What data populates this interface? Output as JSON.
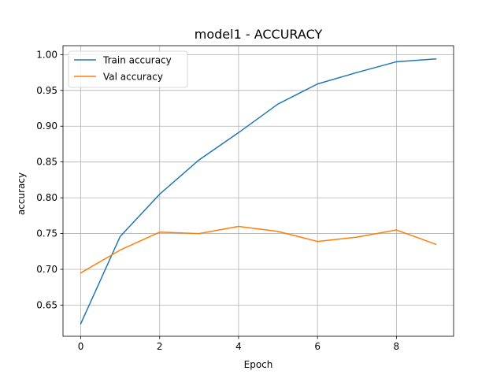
{
  "chart_data": {
    "type": "line",
    "title": "model1 - ACCURACY",
    "xlabel": "Epoch",
    "ylabel": "accuracy",
    "x": [
      0,
      1,
      2,
      3,
      4,
      5,
      6,
      7,
      8,
      9
    ],
    "xlim": [
      -0.45,
      9.45
    ],
    "ylim": [
      0.6065,
      1.0125
    ],
    "xticks": [
      0,
      2,
      4,
      6,
      8
    ],
    "xtick_labels": [
      "0",
      "2",
      "4",
      "6",
      "8"
    ],
    "yticks": [
      0.65,
      0.7,
      0.75,
      0.8,
      0.85,
      0.9,
      0.95,
      1.0
    ],
    "ytick_labels": [
      "0.65",
      "0.70",
      "0.75",
      "0.80",
      "0.85",
      "0.90",
      "0.95",
      "1.00"
    ],
    "grid": true,
    "legend_position": "upper-left",
    "series": [
      {
        "name": "Train accuracy",
        "color": "#1f77b4",
        "values": [
          0.624,
          0.746,
          0.805,
          0.853,
          0.891,
          0.931,
          0.959,
          0.975,
          0.99,
          0.994
        ]
      },
      {
        "name": "Val accuracy",
        "color": "#ff7f0e",
        "values": [
          0.695,
          0.727,
          0.752,
          0.75,
          0.76,
          0.753,
          0.739,
          0.745,
          0.755,
          0.735
        ]
      }
    ]
  }
}
